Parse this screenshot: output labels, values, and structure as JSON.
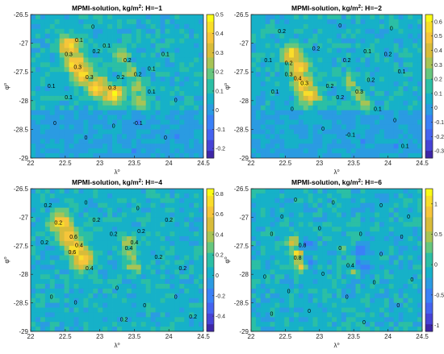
{
  "chart_data": [
    {
      "type": "heatmap",
      "title": "MPMI-solution, kg/m",
      "title_sup": "2",
      "title_tail": ": H=−1",
      "xlabel": "λ",
      "xlabel_sup": "o",
      "ylabel": "φ",
      "ylabel_sup": "o",
      "xlim": [
        22,
        24.5
      ],
      "ylim": [
        -29,
        -26.5
      ],
      "xticks": [
        "22",
        "22.5",
        "23",
        "23.5",
        "24",
        "24.5"
      ],
      "yticks": [
        "-26.5",
        "-27",
        "-27.5",
        "-28",
        "-28.5",
        "-29"
      ],
      "colorbar_ticks": [
        "0.5",
        "0.4",
        "0.3",
        "0.2",
        "0.1",
        "0",
        "-0.1",
        "-0.2"
      ],
      "colorbar_range": [
        -0.25,
        0.5
      ],
      "contour_labels": [
        {
          "v": "0.3",
          "x": 22.55,
          "y": -27.2
        },
        {
          "v": "0.3",
          "x": 22.68,
          "y": -27.42
        },
        {
          "v": "0.3",
          "x": 22.85,
          "y": -27.6
        },
        {
          "v": "0.3",
          "x": 23.18,
          "y": -27.78
        },
        {
          "v": "0.2",
          "x": 22.95,
          "y": -27.15
        },
        {
          "v": "0.2",
          "x": 23.3,
          "y": -27.6
        },
        {
          "v": "0.2",
          "x": 23.55,
          "y": -27.55
        },
        {
          "v": "0.2",
          "x": 23.4,
          "y": -27.3
        },
        {
          "v": "0.1",
          "x": 22.3,
          "y": -27.75
        },
        {
          "v": "0.1",
          "x": 22.55,
          "y": -27.95
        },
        {
          "v": "0.1",
          "x": 23.1,
          "y": -27.05
        },
        {
          "v": "0.1",
          "x": 23.75,
          "y": -27.45
        },
        {
          "v": "0.1",
          "x": 23.95,
          "y": -27.2
        },
        {
          "v": "0.1",
          "x": 23.75,
          "y": -27.85
        },
        {
          "v": "0",
          "x": 22.9,
          "y": -26.72
        },
        {
          "v": "0",
          "x": 24.1,
          "y": -28.0
        },
        {
          "v": "0",
          "x": 22.35,
          "y": -28.4
        },
        {
          "v": "0",
          "x": 23.2,
          "y": -28.45
        },
        {
          "v": "-0.1",
          "x": 23.55,
          "y": -28.4
        },
        {
          "v": "0",
          "x": 23.95,
          "y": -28.65
        },
        {
          "v": "0",
          "x": 22.8,
          "y": -28.65
        },
        {
          "v": "0.1",
          "x": 22.7,
          "y": -26.95
        }
      ]
    },
    {
      "type": "heatmap",
      "title": "MPMI-solution, kg/m",
      "title_sup": "2",
      "title_tail": ": H=−2",
      "xlabel": "λ",
      "xlabel_sup": "o",
      "ylabel": "φ",
      "ylabel_sup": "o",
      "xlim": [
        22,
        24.5
      ],
      "ylim": [
        -29,
        -26.5
      ],
      "xticks": [
        "22",
        "22.5",
        "23",
        "23.5",
        "24",
        "24.5"
      ],
      "yticks": [
        "-26.5",
        "-27",
        "-27.5",
        "-28",
        "-28.5",
        "-29"
      ],
      "colorbar_ticks": [
        "0.6",
        "0.5",
        "0.4",
        "0.3",
        "0.2",
        "0.1",
        "0",
        "-0.1",
        "-0.2",
        "-0.3"
      ],
      "colorbar_range": [
        -0.35,
        0.65
      ],
      "contour_labels": [
        {
          "v": "0.3",
          "x": 22.55,
          "y": -27.55
        },
        {
          "v": "0.4",
          "x": 22.68,
          "y": -27.62
        },
        {
          "v": "0.3",
          "x": 22.78,
          "y": -27.7
        },
        {
          "v": "0.2",
          "x": 22.55,
          "y": -27.35
        },
        {
          "v": "0.2",
          "x": 23.15,
          "y": -27.75
        },
        {
          "v": "0.2",
          "x": 23.3,
          "y": -27.95
        },
        {
          "v": "0.3",
          "x": 23.58,
          "y": -27.85
        },
        {
          "v": "0.2",
          "x": 23.75,
          "y": -27.65
        },
        {
          "v": "0.1",
          "x": 22.25,
          "y": -27.3
        },
        {
          "v": "0.1",
          "x": 22.35,
          "y": -27.85
        },
        {
          "v": "0.2",
          "x": 22.95,
          "y": -27.1
        },
        {
          "v": "0.2",
          "x": 23.4,
          "y": -27.3
        },
        {
          "v": "0.1",
          "x": 23.7,
          "y": -27.15
        },
        {
          "v": "0.2",
          "x": 24.0,
          "y": -27.2
        },
        {
          "v": "0.1",
          "x": 24.2,
          "y": -27.5
        },
        {
          "v": "0",
          "x": 23.3,
          "y": -26.7
        },
        {
          "v": "0",
          "x": 24.05,
          "y": -26.75
        },
        {
          "v": "0",
          "x": 22.6,
          "y": -28.15
        },
        {
          "v": "0",
          "x": 23.05,
          "y": -28.5
        },
        {
          "v": "-0.1",
          "x": 23.45,
          "y": -28.6
        },
        {
          "v": "0",
          "x": 24.1,
          "y": -28.35
        },
        {
          "v": "0.1",
          "x": 24.25,
          "y": -28.8
        },
        {
          "v": "0.2",
          "x": 22.45,
          "y": -26.8
        },
        {
          "v": "0.1",
          "x": 23.85,
          "y": -28.15
        }
      ]
    },
    {
      "type": "heatmap",
      "title": "MPMI-solution, kg/m",
      "title_sup": "2",
      "title_tail": ": H=−4",
      "xlabel": "λ",
      "xlabel_sup": "o",
      "ylabel": "φ",
      "ylabel_sup": "o",
      "xlim": [
        22,
        24.5
      ],
      "ylim": [
        -29,
        -26.5
      ],
      "xticks": [
        "22",
        "22.5",
        "23",
        "23.5",
        "24",
        "24.5"
      ],
      "yticks": [
        "-26.5",
        "-27",
        "-27.5",
        "-28",
        "-28.5",
        "-29"
      ],
      "colorbar_ticks": [
        "0.8",
        "0.6",
        "0.4",
        "0.2",
        "0",
        "-0.2",
        "-0.4"
      ],
      "colorbar_range": [
        -0.55,
        0.85
      ],
      "contour_labels": [
        {
          "v": "0.6",
          "x": 22.62,
          "y": -27.35
        },
        {
          "v": "0.4",
          "x": 22.7,
          "y": -27.5
        },
        {
          "v": "0.6",
          "x": 22.6,
          "y": -27.62
        },
        {
          "v": "0.4",
          "x": 23.42,
          "y": -27.55
        },
        {
          "v": "0.4",
          "x": 23.5,
          "y": -27.45
        },
        {
          "v": "0.4",
          "x": 22.85,
          "y": -27.9
        },
        {
          "v": "0.2",
          "x": 22.4,
          "y": -27.1
        },
        {
          "v": "0.2",
          "x": 23.2,
          "y": -27.3
        },
        {
          "v": "0.2",
          "x": 23.6,
          "y": -27.25
        },
        {
          "v": "0.2",
          "x": 24.0,
          "y": -27.05
        },
        {
          "v": "0.2",
          "x": 22.2,
          "y": -27.45
        },
        {
          "v": "0.2",
          "x": 24.2,
          "y": -27.9
        },
        {
          "v": "0",
          "x": 22.3,
          "y": -28.4
        },
        {
          "v": "0",
          "x": 22.65,
          "y": -28.5
        },
        {
          "v": "0",
          "x": 23.25,
          "y": -28.25
        },
        {
          "v": "0",
          "x": 23.65,
          "y": -28.55
        },
        {
          "v": "0",
          "x": 24.1,
          "y": -28.4
        },
        {
          "v": "0",
          "x": 22.8,
          "y": -26.75
        },
        {
          "v": "0",
          "x": 23.55,
          "y": -26.85
        },
        {
          "v": "0.2",
          "x": 22.25,
          "y": -26.8
        },
        {
          "v": "0.2",
          "x": 23.35,
          "y": -28.8
        },
        {
          "v": "0.2",
          "x": 24.35,
          "y": -28.75
        },
        {
          "v": "0.2",
          "x": 22.95,
          "y": -27.05
        },
        {
          "v": "0.2",
          "x": 23.85,
          "y": -27.7
        }
      ]
    },
    {
      "type": "heatmap",
      "title": "MPMI-solution, kg/m",
      "title_sup": "2",
      "title_tail": ": H=−6",
      "xlabel": "λ",
      "xlabel_sup": "o",
      "ylabel": "φ",
      "ylabel_sup": "o",
      "xlim": [
        22,
        24.5
      ],
      "ylim": [
        -29,
        -26.5
      ],
      "xticks": [
        "22",
        "22.5",
        "23",
        "23.5",
        "24",
        "24.5"
      ],
      "yticks": [
        "-26.5",
        "-27",
        "-27.5",
        "-28",
        "-28.5",
        "-29"
      ],
      "colorbar_ticks": [
        "1",
        "0.5",
        "0",
        "-0.5",
        "-1"
      ],
      "colorbar_range": [
        -1.1,
        1.25
      ],
      "contour_labels": [
        {
          "v": "0.8",
          "x": 22.68,
          "y": -27.72
        },
        {
          "v": "0.8",
          "x": 22.75,
          "y": -27.5
        },
        {
          "v": "0",
          "x": 22.3,
          "y": -27.3
        },
        {
          "v": "0",
          "x": 22.45,
          "y": -27.0
        },
        {
          "v": "0",
          "x": 23.0,
          "y": -27.2
        },
        {
          "v": "0",
          "x": 23.3,
          "y": -27.55
        },
        {
          "v": "0",
          "x": 23.6,
          "y": -27.3
        },
        {
          "v": "0",
          "x": 23.9,
          "y": -27.65
        },
        {
          "v": "0",
          "x": 24.2,
          "y": -27.35
        },
        {
          "v": "0",
          "x": 22.2,
          "y": -28.05
        },
        {
          "v": "0",
          "x": 22.55,
          "y": -28.3
        },
        {
          "v": "0",
          "x": 23.05,
          "y": -28.0
        },
        {
          "v": "0",
          "x": 23.4,
          "y": -28.4
        },
        {
          "v": "0",
          "x": 23.8,
          "y": -28.15
        },
        {
          "v": "0",
          "x": 24.15,
          "y": -28.55
        },
        {
          "v": "0",
          "x": 22.85,
          "y": -28.65
        },
        {
          "v": "0",
          "x": 22.3,
          "y": -28.7
        },
        {
          "v": "0",
          "x": 23.65,
          "y": -28.85
        },
        {
          "v": "0",
          "x": 23.2,
          "y": -26.75
        },
        {
          "v": "0",
          "x": 23.9,
          "y": -26.8
        },
        {
          "v": "0",
          "x": 24.3,
          "y": -27.0
        },
        {
          "v": "0",
          "x": 22.65,
          "y": -26.7
        },
        {
          "v": "0.4",
          "x": 23.45,
          "y": -27.85
        },
        {
          "v": "0",
          "x": 24.35,
          "y": -28.1
        }
      ]
    }
  ]
}
